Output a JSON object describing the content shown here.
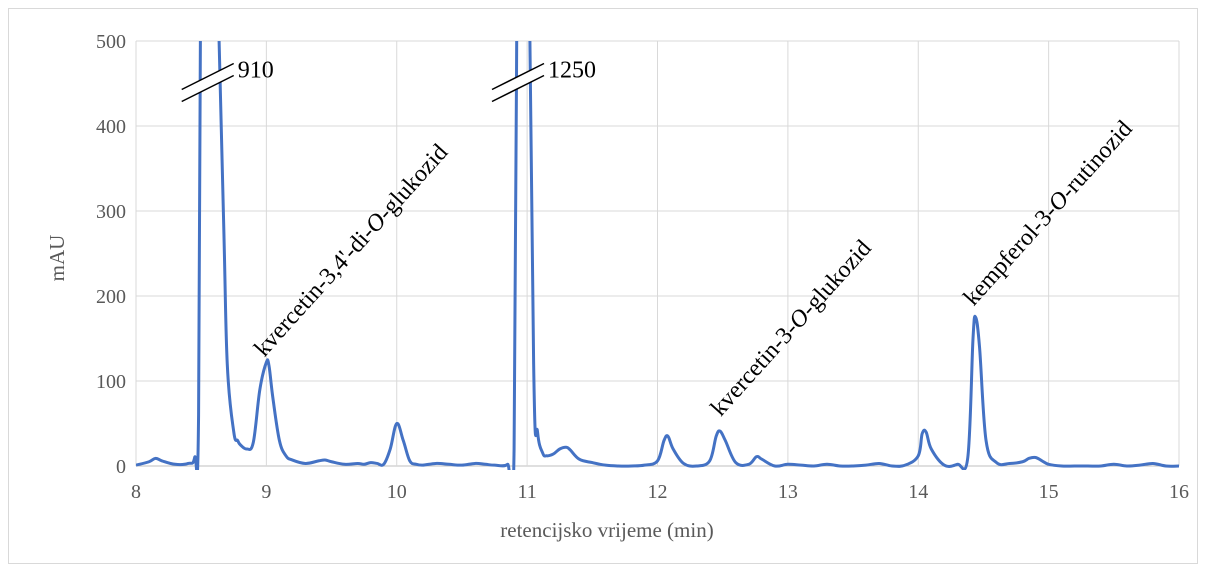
{
  "chart_data": {
    "type": "line",
    "xlabel": "retencijsko vrijeme (min)",
    "ylabel": "mAU",
    "xlim": [
      8,
      16
    ],
    "ylim": [
      0,
      500
    ],
    "x_ticks": [
      "8",
      "9",
      "10",
      "11",
      "12",
      "13",
      "14",
      "15",
      "16"
    ],
    "y_ticks": [
      "0",
      "100",
      "200",
      "300",
      "400",
      "500"
    ],
    "grid": "on",
    "line_color": "#4472c4",
    "series": [
      {
        "x": [
          8.0,
          8.1,
          8.15,
          8.2,
          8.3,
          8.4,
          8.45,
          8.48,
          8.5,
          8.53,
          8.6,
          8.67,
          8.7,
          8.75,
          8.78,
          8.8,
          8.85,
          8.9,
          8.95,
          9.0,
          9.02,
          9.05,
          9.1,
          9.15,
          9.2,
          9.3,
          9.4,
          9.45,
          9.5,
          9.6,
          9.7,
          9.75,
          9.8,
          9.85,
          9.9,
          9.95,
          10.0,
          10.05,
          10.1,
          10.15,
          10.2,
          10.3,
          10.4,
          10.5,
          10.6,
          10.68,
          10.75,
          10.85,
          10.9,
          10.93,
          10.96,
          11.0,
          11.05,
          11.08,
          11.12,
          11.15,
          11.2,
          11.25,
          11.3,
          11.33,
          11.4,
          11.5,
          11.6,
          11.7,
          11.8,
          11.9,
          12.0,
          12.05,
          12.08,
          12.12,
          12.2,
          12.3,
          12.4,
          12.45,
          12.48,
          12.52,
          12.6,
          12.7,
          12.76,
          12.8,
          12.9,
          13.0,
          13.1,
          13.2,
          13.3,
          13.4,
          13.5,
          13.6,
          13.7,
          13.8,
          13.9,
          14.0,
          14.03,
          14.06,
          14.1,
          14.2,
          14.3,
          14.38,
          14.42,
          14.44,
          14.47,
          14.52,
          14.6,
          14.7,
          14.8,
          14.85,
          14.9,
          14.95,
          15.0,
          15.1,
          15.2,
          15.3,
          15.4,
          15.5,
          15.6,
          15.7,
          15.8,
          15.9,
          16.0
        ],
        "y": [
          1,
          5,
          9,
          6,
          2,
          3,
          10,
          60,
          700,
          910,
          700,
          300,
          120,
          40,
          30,
          25,
          20,
          28,
          90,
          122,
          118,
          80,
          30,
          12,
          7,
          3,
          6,
          7,
          5,
          2,
          3,
          2,
          4,
          3,
          2,
          20,
          50,
          30,
          6,
          2,
          1,
          3,
          2,
          1,
          3,
          2,
          1,
          2,
          20,
          800,
          1250,
          800,
          120,
          40,
          15,
          12,
          14,
          20,
          22,
          19,
          8,
          4,
          1,
          0,
          0,
          1,
          6,
          30,
          35,
          20,
          3,
          0,
          6,
          35,
          41,
          30,
          4,
          2,
          11,
          8,
          0,
          2,
          1,
          0,
          2,
          0,
          0,
          1,
          3,
          0,
          1,
          12,
          38,
          40,
          20,
          1,
          2,
          10,
          150,
          175,
          140,
          30,
          4,
          3,
          5,
          9,
          10,
          6,
          2,
          0,
          0,
          0,
          0,
          2,
          0,
          1,
          3,
          0,
          0
        ]
      }
    ],
    "axis_breaks": [
      {
        "x": 8.55,
        "y": 450,
        "label": "910"
      },
      {
        "x": 10.93,
        "y": 450,
        "label": "1250"
      }
    ],
    "annotations": [
      {
        "text": "kvercetin-3,4'-di-O-glukozid",
        "x": 9.0,
        "y": 125
      },
      {
        "text": "kvercetin-3-O-glukozid",
        "x": 12.5,
        "y": 55
      },
      {
        "text": "kempferol-3-O-rutinozid",
        "x": 14.44,
        "y": 185
      }
    ]
  }
}
